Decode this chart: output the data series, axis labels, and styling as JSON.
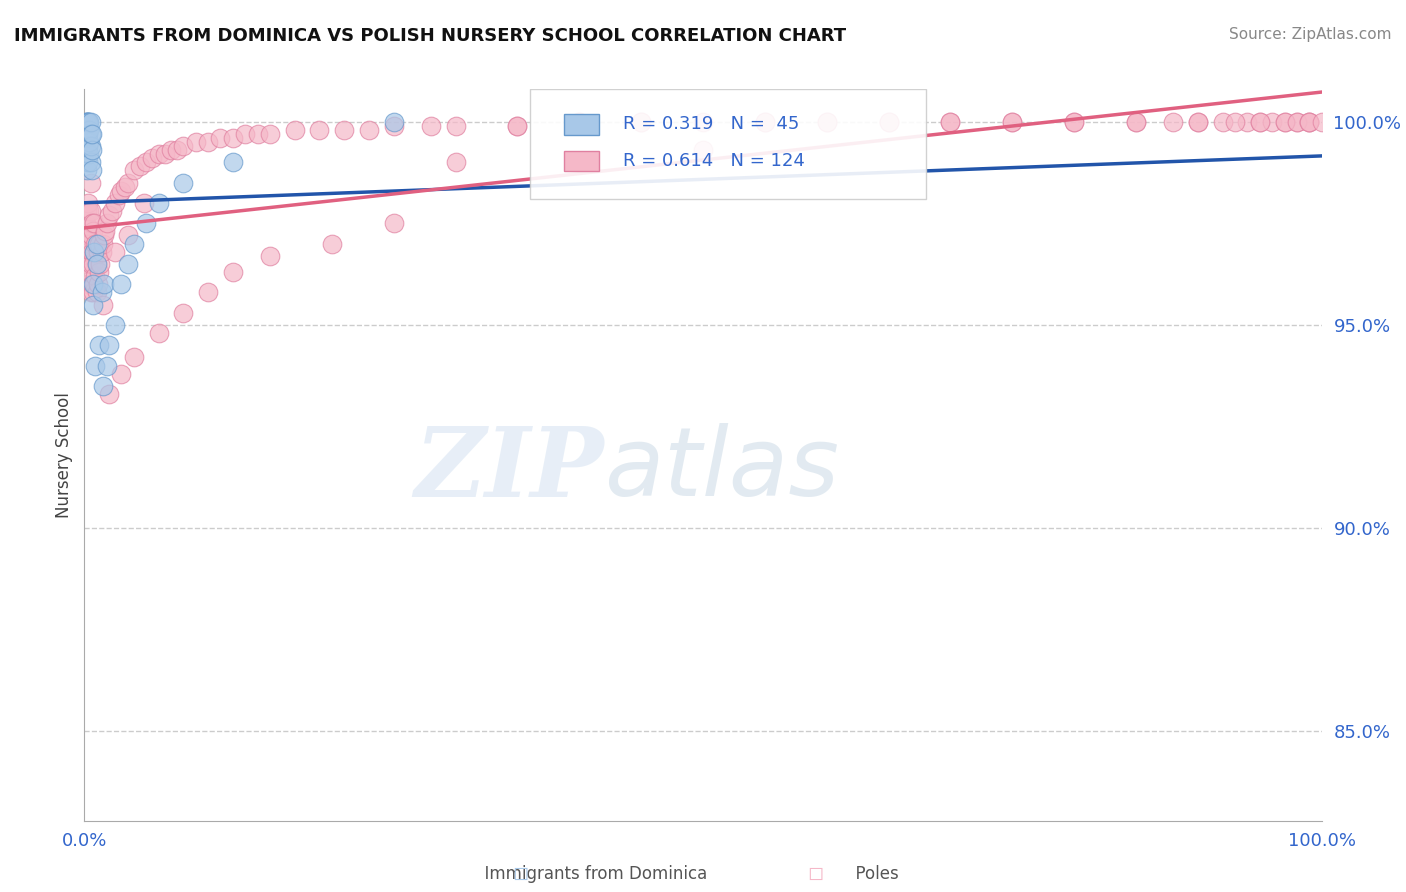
{
  "title": "IMMIGRANTS FROM DOMINICA VS POLISH NURSERY SCHOOL CORRELATION CHART",
  "source": "Source: ZipAtlas.com",
  "ylabel": "Nursery School",
  "ytick_labels": [
    "85.0%",
    "90.0%",
    "95.0%",
    "100.0%"
  ],
  "ytick_values": [
    0.85,
    0.9,
    0.95,
    1.0
  ],
  "xlim": [
    0.0,
    1.0
  ],
  "ylim": [
    0.828,
    1.008
  ],
  "legend_r_blue": "R = 0.319",
  "legend_n_blue": "N =  45",
  "legend_r_pink": "R = 0.614",
  "legend_n_pink": "N = 124",
  "watermark_zip": "ZIP",
  "watermark_atlas": "atlas",
  "blue_color": "#a8c8e8",
  "blue_edge_color": "#6699cc",
  "blue_line_color": "#2255aa",
  "pink_color": "#f5b8c8",
  "pink_edge_color": "#e080a0",
  "pink_line_color": "#e06080",
  "background_color": "#ffffff",
  "grid_color": "#cccccc",
  "label_color": "#3366cc",
  "blue_scatter_x": [
    0.001,
    0.001,
    0.001,
    0.002,
    0.002,
    0.002,
    0.002,
    0.002,
    0.003,
    0.003,
    0.003,
    0.003,
    0.003,
    0.004,
    0.004,
    0.004,
    0.004,
    0.005,
    0.005,
    0.005,
    0.005,
    0.006,
    0.006,
    0.006,
    0.007,
    0.007,
    0.008,
    0.009,
    0.01,
    0.01,
    0.012,
    0.014,
    0.015,
    0.016,
    0.018,
    0.02,
    0.025,
    0.03,
    0.035,
    0.04,
    0.05,
    0.06,
    0.08,
    0.12,
    0.25
  ],
  "blue_scatter_y": [
    0.996,
    0.998,
    1.0,
    0.988,
    0.993,
    0.997,
    1.0,
    1.0,
    0.99,
    0.994,
    0.997,
    1.0,
    1.0,
    0.992,
    0.995,
    0.998,
    1.0,
    0.99,
    0.994,
    0.997,
    1.0,
    0.988,
    0.993,
    0.997,
    0.96,
    0.955,
    0.968,
    0.94,
    0.965,
    0.97,
    0.945,
    0.958,
    0.935,
    0.96,
    0.94,
    0.945,
    0.95,
    0.96,
    0.965,
    0.97,
    0.975,
    0.98,
    0.985,
    0.99,
    1.0
  ],
  "pink_scatter_x": [
    0.001,
    0.001,
    0.002,
    0.002,
    0.002,
    0.003,
    0.003,
    0.003,
    0.003,
    0.004,
    0.004,
    0.004,
    0.005,
    0.005,
    0.005,
    0.005,
    0.005,
    0.006,
    0.006,
    0.006,
    0.007,
    0.007,
    0.007,
    0.008,
    0.008,
    0.008,
    0.009,
    0.009,
    0.01,
    0.01,
    0.011,
    0.011,
    0.012,
    0.012,
    0.013,
    0.014,
    0.015,
    0.016,
    0.017,
    0.018,
    0.02,
    0.022,
    0.025,
    0.028,
    0.03,
    0.033,
    0.035,
    0.04,
    0.045,
    0.05,
    0.055,
    0.06,
    0.065,
    0.07,
    0.075,
    0.08,
    0.09,
    0.1,
    0.11,
    0.12,
    0.13,
    0.14,
    0.15,
    0.17,
    0.19,
    0.21,
    0.23,
    0.25,
    0.28,
    0.3,
    0.35,
    0.4,
    0.45,
    0.5,
    0.55,
    0.6,
    0.65,
    0.7,
    0.75,
    0.8,
    0.85,
    0.88,
    0.9,
    0.92,
    0.94,
    0.95,
    0.96,
    0.97,
    0.98,
    0.99,
    0.9,
    0.93,
    0.95,
    0.97,
    0.98,
    0.99,
    0.99,
    1.0,
    0.3,
    0.5,
    0.12,
    0.2,
    0.15,
    0.25,
    0.1,
    0.08,
    0.06,
    0.04,
    0.03,
    0.02,
    0.35,
    0.4,
    0.6,
    0.7,
    0.8,
    0.85,
    0.45,
    0.55,
    0.65,
    0.75,
    0.015,
    0.025,
    0.035,
    0.048
  ],
  "pink_scatter_y": [
    0.97,
    0.975,
    0.965,
    0.972,
    0.978,
    0.96,
    0.968,
    0.974,
    0.98,
    0.963,
    0.97,
    0.978,
    0.958,
    0.965,
    0.972,
    0.978,
    0.985,
    0.96,
    0.968,
    0.975,
    0.958,
    0.965,
    0.973,
    0.96,
    0.968,
    0.975,
    0.962,
    0.97,
    0.958,
    0.965,
    0.96,
    0.968,
    0.963,
    0.97,
    0.965,
    0.968,
    0.97,
    0.972,
    0.973,
    0.975,
    0.977,
    0.978,
    0.98,
    0.982,
    0.983,
    0.984,
    0.985,
    0.988,
    0.989,
    0.99,
    0.991,
    0.992,
    0.992,
    0.993,
    0.993,
    0.994,
    0.995,
    0.995,
    0.996,
    0.996,
    0.997,
    0.997,
    0.997,
    0.998,
    0.998,
    0.998,
    0.998,
    0.999,
    0.999,
    0.999,
    0.999,
    1.0,
    1.0,
    1.0,
    1.0,
    1.0,
    1.0,
    1.0,
    1.0,
    1.0,
    1.0,
    1.0,
    1.0,
    1.0,
    1.0,
    1.0,
    1.0,
    1.0,
    1.0,
    1.0,
    1.0,
    1.0,
    1.0,
    1.0,
    1.0,
    1.0,
    1.0,
    1.0,
    0.99,
    0.993,
    0.963,
    0.97,
    0.967,
    0.975,
    0.958,
    0.953,
    0.948,
    0.942,
    0.938,
    0.933,
    0.999,
    1.0,
    1.0,
    1.0,
    1.0,
    1.0,
    1.0,
    1.0,
    1.0,
    1.0,
    0.955,
    0.968,
    0.972,
    0.98
  ]
}
